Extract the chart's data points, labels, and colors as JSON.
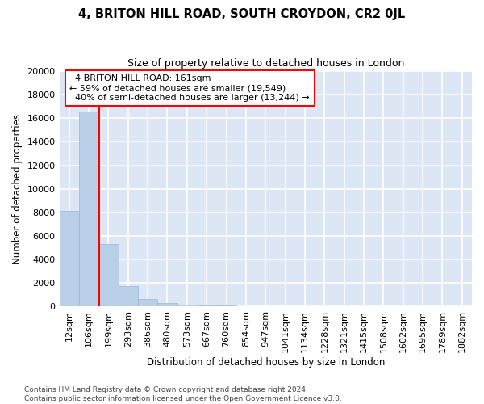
{
  "title": "4, BRITON HILL ROAD, SOUTH CROYDON, CR2 0JL",
  "subtitle": "Size of property relative to detached houses in London",
  "xlabel": "Distribution of detached houses by size in London",
  "ylabel": "Number of detached properties",
  "bar_color": "#b8cfe8",
  "bar_edge_color": "#9ab8d8",
  "background_color": "#dce6f5",
  "grid_color": "#ffffff",
  "bin_labels": [
    "12sqm",
    "106sqm",
    "199sqm",
    "293sqm",
    "386sqm",
    "480sqm",
    "573sqm",
    "667sqm",
    "760sqm",
    "854sqm",
    "947sqm",
    "1041sqm",
    "1134sqm",
    "1228sqm",
    "1321sqm",
    "1415sqm",
    "1508sqm",
    "1602sqm",
    "1695sqm",
    "1789sqm",
    "1882sqm"
  ],
  "bar_heights": [
    8100,
    16600,
    5300,
    1750,
    680,
    310,
    180,
    120,
    100,
    0,
    0,
    0,
    0,
    0,
    0,
    0,
    0,
    0,
    0,
    0,
    0
  ],
  "ylim": [
    0,
    20000
  ],
  "yticks": [
    0,
    2000,
    4000,
    6000,
    8000,
    10000,
    12000,
    14000,
    16000,
    18000,
    20000
  ],
  "property_label": "4 BRITON HILL ROAD: 161sqm",
  "pct_smaller": 59,
  "n_smaller": 19549,
  "pct_larger": 40,
  "n_larger": 13244,
  "vline_x": 1.55,
  "footnote_line1": "Contains HM Land Registry data © Crown copyright and database right 2024.",
  "footnote_line2": "Contains public sector information licensed under the Open Government Licence v3.0.",
  "fig_width": 6.0,
  "fig_height": 5.0,
  "dpi": 100
}
